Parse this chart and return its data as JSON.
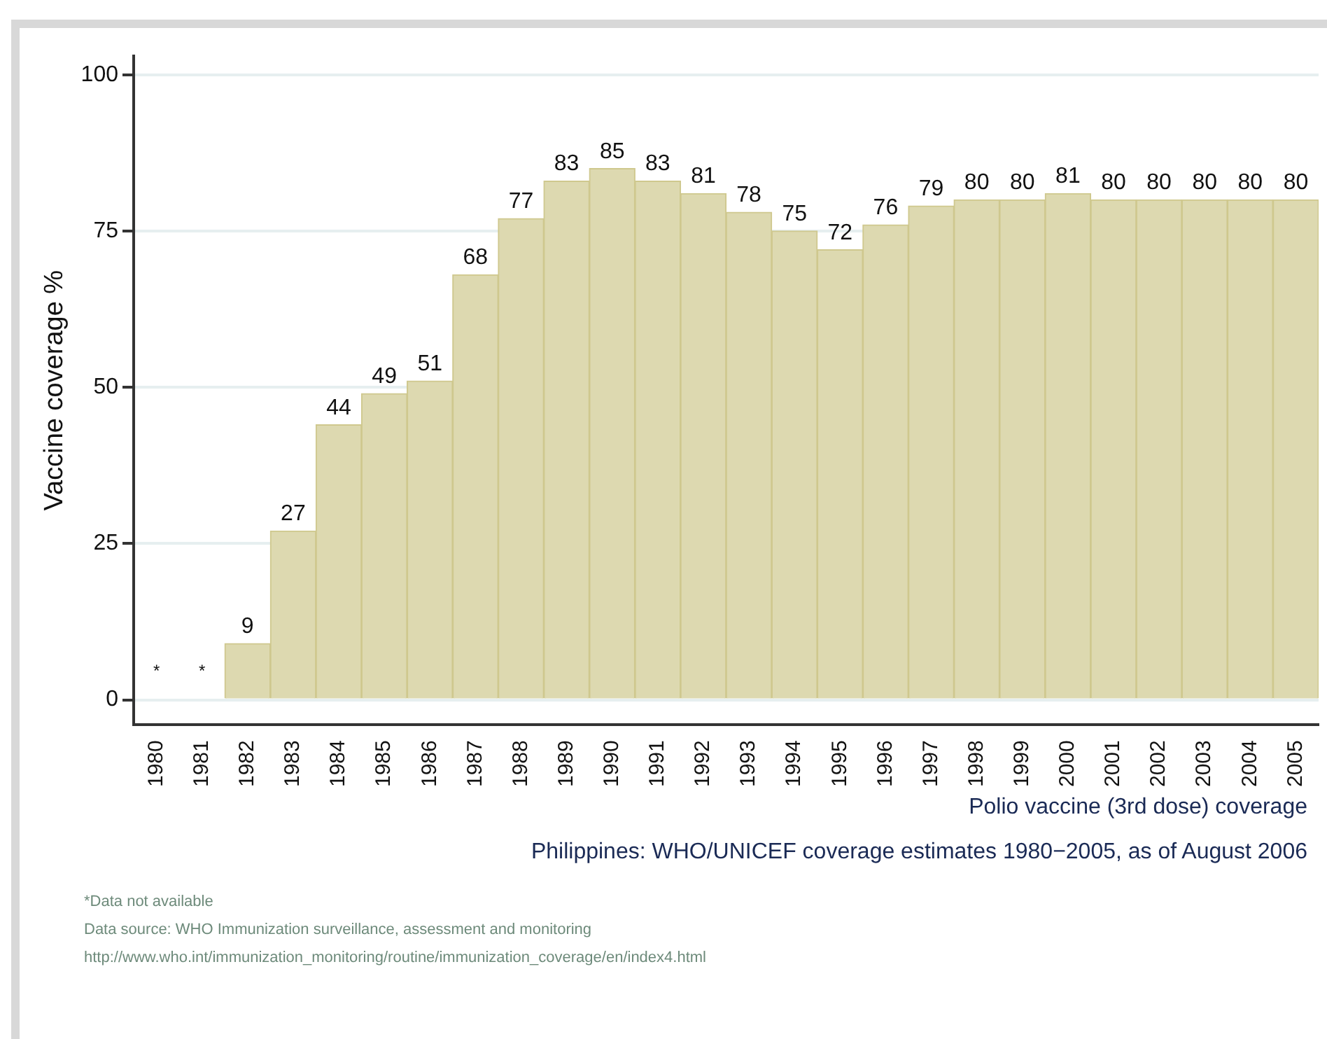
{
  "chart_data": {
    "type": "bar",
    "title": "Polio vaccine (3rd dose) coverage",
    "subtitle": "Philippines: WHO/UNICEF coverage estimates 1980−2005, as of August 2006",
    "ylabel": "Vaccine coverage %",
    "categories": [
      "1980",
      "1981",
      "1982",
      "1983",
      "1984",
      "1985",
      "1986",
      "1987",
      "1988",
      "1989",
      "1990",
      "1991",
      "1992",
      "1993",
      "1994",
      "1995",
      "1996",
      "1997",
      "1998",
      "1999",
      "2000",
      "2001",
      "2002",
      "2003",
      "2004",
      "2005"
    ],
    "values": [
      null,
      null,
      9,
      27,
      44,
      49,
      51,
      68,
      77,
      83,
      85,
      83,
      81,
      78,
      75,
      72,
      76,
      79,
      80,
      80,
      81,
      80,
      80,
      80,
      80,
      80
    ],
    "value_labels": [
      "*",
      "*",
      "9",
      "27",
      "44",
      "49",
      "51",
      "68",
      "77",
      "83",
      "85",
      "83",
      "81",
      "78",
      "75",
      "72",
      "76",
      "79",
      "80",
      "80",
      "81",
      "80",
      "80",
      "80",
      "80",
      "80"
    ],
    "color": "#ddd9b0",
    "ylim": [
      -4,
      103
    ],
    "yticks": [
      0,
      25,
      50,
      75,
      100
    ],
    "grid": "y",
    "legend": false,
    "annotations": [
      "*Data not available",
      "Data source: WHO Immunization surveillance, assessment and monitoring",
      "http://www.who.int/immunization_monitoring/routine/immunization_coverage/en/index4.html"
    ]
  }
}
